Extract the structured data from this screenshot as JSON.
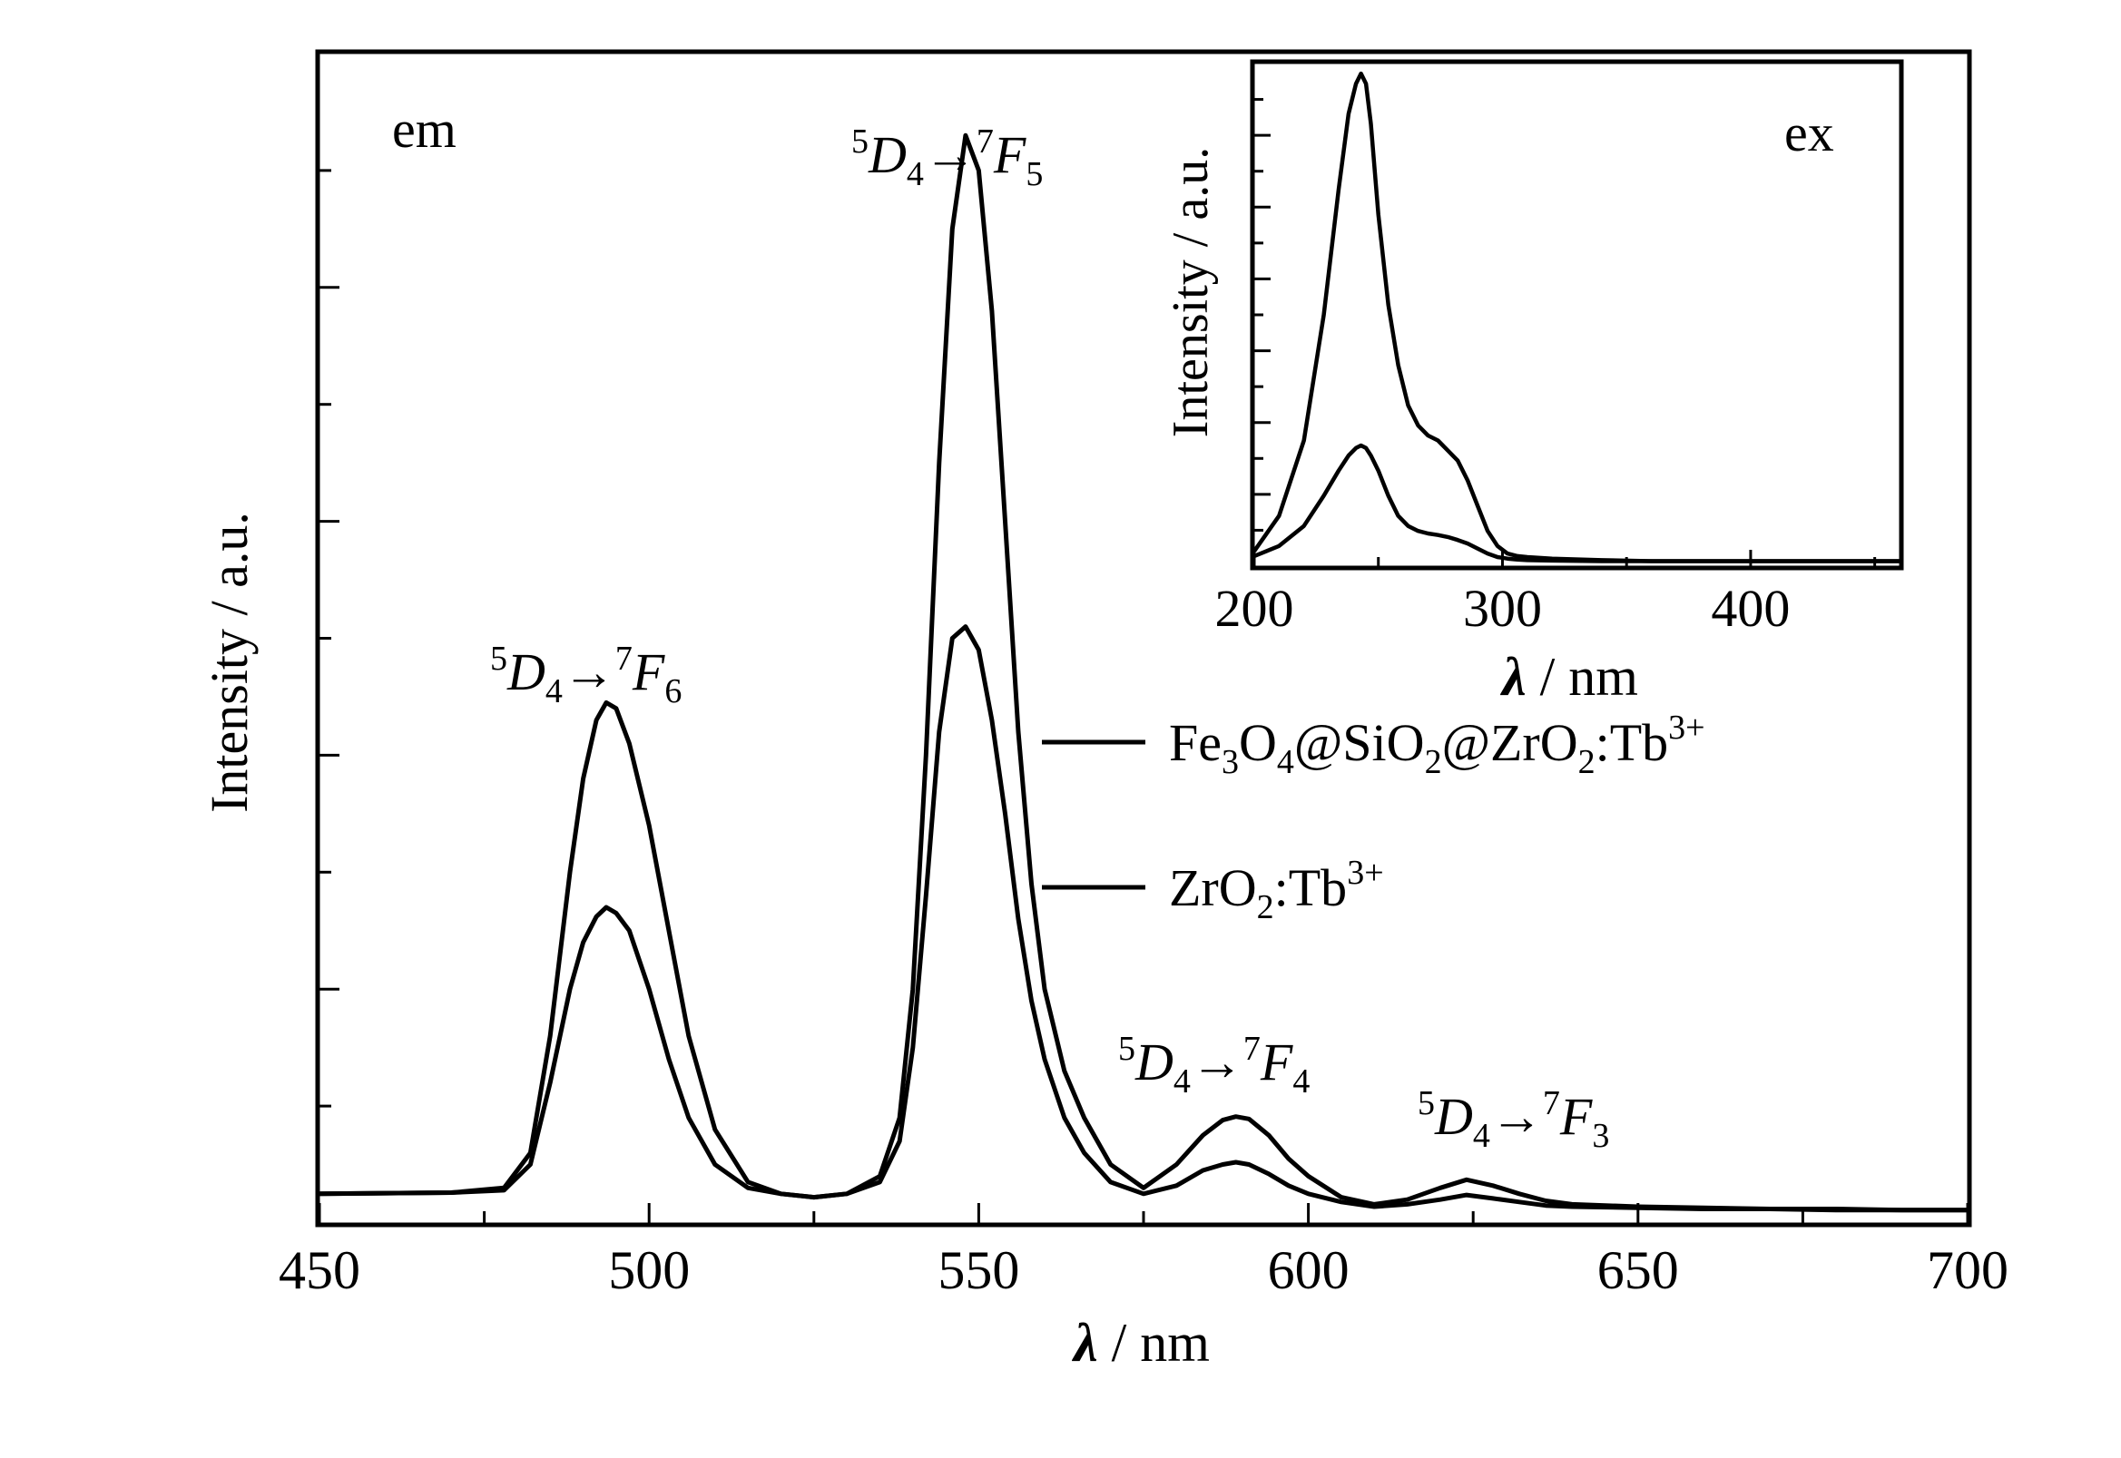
{
  "chart_data": [
    {
      "type": "line",
      "panel_label": "em",
      "xlabel_symbol": "λ",
      "xlabel_unit": " / nm",
      "ylabel": "Intensity / a.u.",
      "xlim": [
        450,
        700
      ],
      "ylim": [
        0,
        1.0
      ],
      "x_ticks": [
        450,
        500,
        550,
        600,
        650,
        700
      ],
      "x_tick_labels": [
        "450",
        "500",
        "550",
        "600",
        "650",
        "700"
      ],
      "y_tick_labels_shown": false,
      "grid": false,
      "legend_position": "right",
      "annotations": [
        {
          "id": "f6",
          "lower": "5",
          "D": "D",
          "Dsub": "4",
          "arrow": "→",
          "upper": "7",
          "F": "F",
          "Fsub": "6",
          "x": 493
        },
        {
          "id": "f5",
          "lower": "5",
          "D": "D",
          "Dsub": "4",
          "arrow": "→",
          "upper": "7",
          "F": "F",
          "Fsub": "5",
          "x": 548
        },
        {
          "id": "f4",
          "lower": "5",
          "D": "D",
          "Dsub": "4",
          "arrow": "→",
          "upper": "7",
          "F": "F",
          "Fsub": "4",
          "x": 590
        },
        {
          "id": "f3",
          "lower": "5",
          "D": "D",
          "Dsub": "4",
          "arrow": "→",
          "upper": "7",
          "F": "F",
          "Fsub": "3",
          "x": 637
        }
      ],
      "series": [
        {
          "legend_parts": [
            "Fe",
            "3",
            "O",
            "4",
            "@SiO",
            "2",
            "@ZrO",
            "2",
            ":Tb",
            "3+"
          ],
          "x": [
            450,
            470,
            478,
            482,
            485,
            488,
            490,
            492,
            493.5,
            495,
            497,
            500,
            503,
            506,
            510,
            515,
            520,
            525,
            530,
            535,
            538,
            540,
            542,
            544,
            546,
            548,
            550,
            552,
            554,
            556,
            558,
            560,
            563,
            566,
            570,
            575,
            580,
            584,
            587,
            589,
            591,
            594,
            597,
            600,
            605,
            610,
            615,
            620,
            624,
            628,
            632,
            636,
            640,
            650,
            660,
            670,
            680,
            690,
            700
          ],
          "y": [
            0.025,
            0.026,
            0.03,
            0.06,
            0.16,
            0.3,
            0.38,
            0.43,
            0.445,
            0.44,
            0.41,
            0.34,
            0.25,
            0.16,
            0.08,
            0.035,
            0.025,
            0.022,
            0.025,
            0.04,
            0.09,
            0.2,
            0.4,
            0.65,
            0.85,
            0.93,
            0.9,
            0.78,
            0.6,
            0.42,
            0.29,
            0.2,
            0.13,
            0.09,
            0.05,
            0.03,
            0.05,
            0.075,
            0.088,
            0.091,
            0.089,
            0.075,
            0.055,
            0.04,
            0.022,
            0.016,
            0.02,
            0.03,
            0.037,
            0.032,
            0.025,
            0.019,
            0.016,
            0.014,
            0.013,
            0.012,
            0.012,
            0.011,
            0.011
          ]
        },
        {
          "legend_parts": [
            "ZrO",
            "2",
            ":Tb",
            "3+"
          ],
          "x": [
            450,
            470,
            478,
            482,
            485,
            488,
            490,
            492,
            493.5,
            495,
            497,
            500,
            503,
            506,
            510,
            515,
            520,
            525,
            530,
            535,
            538,
            540,
            542,
            544,
            546,
            548,
            550,
            552,
            554,
            556,
            558,
            560,
            563,
            566,
            570,
            575,
            580,
            584,
            587,
            589,
            591,
            594,
            597,
            600,
            605,
            610,
            615,
            620,
            624,
            628,
            632,
            636,
            640,
            650,
            660,
            670,
            680,
            690,
            700
          ],
          "y": [
            0.025,
            0.026,
            0.028,
            0.05,
            0.12,
            0.2,
            0.24,
            0.262,
            0.27,
            0.265,
            0.25,
            0.2,
            0.14,
            0.09,
            0.05,
            0.03,
            0.025,
            0.022,
            0.025,
            0.035,
            0.07,
            0.15,
            0.28,
            0.42,
            0.5,
            0.51,
            0.49,
            0.43,
            0.35,
            0.26,
            0.19,
            0.14,
            0.09,
            0.06,
            0.035,
            0.025,
            0.032,
            0.045,
            0.05,
            0.052,
            0.05,
            0.042,
            0.032,
            0.025,
            0.018,
            0.014,
            0.016,
            0.02,
            0.024,
            0.021,
            0.018,
            0.015,
            0.014,
            0.013,
            0.012,
            0.012,
            0.011,
            0.011,
            0.011
          ]
        }
      ]
    },
    {
      "type": "line",
      "panel_label": "ex",
      "xlabel_symbol": "λ",
      "xlabel_unit": " / nm",
      "ylabel": "Intensity / a.u.",
      "xlim": [
        200,
        460
      ],
      "ylim": [
        0,
        1.0
      ],
      "x_ticks": [
        200,
        300,
        400
      ],
      "x_tick_labels": [
        "200",
        "300",
        "400"
      ],
      "y_tick_labels_shown": false,
      "grid": false,
      "series": [
        {
          "x": [
            200,
            210,
            220,
            228,
            234,
            238,
            241,
            243,
            245,
            247,
            250,
            254,
            258,
            262,
            266,
            270,
            274,
            278,
            282,
            286,
            290,
            294,
            298,
            302,
            306,
            310,
            320,
            340,
            360,
            380,
            400,
            420,
            440,
            460
          ],
          "y": [
            0.03,
            0.1,
            0.25,
            0.5,
            0.75,
            0.9,
            0.96,
            0.98,
            0.96,
            0.88,
            0.7,
            0.52,
            0.4,
            0.32,
            0.28,
            0.26,
            0.25,
            0.23,
            0.21,
            0.17,
            0.12,
            0.07,
            0.04,
            0.025,
            0.02,
            0.018,
            0.015,
            0.012,
            0.01,
            0.01,
            0.01,
            0.01,
            0.01,
            0.01
          ]
        },
        {
          "x": [
            200,
            210,
            220,
            228,
            234,
            238,
            241,
            243,
            245,
            247,
            250,
            254,
            258,
            262,
            266,
            270,
            274,
            278,
            282,
            286,
            290,
            294,
            298,
            302,
            306,
            310,
            320,
            340,
            360,
            380,
            400,
            420,
            440,
            460
          ],
          "y": [
            0.02,
            0.04,
            0.08,
            0.14,
            0.19,
            0.22,
            0.235,
            0.24,
            0.235,
            0.22,
            0.19,
            0.14,
            0.1,
            0.08,
            0.07,
            0.065,
            0.062,
            0.058,
            0.052,
            0.045,
            0.035,
            0.025,
            0.018,
            0.015,
            0.013,
            0.012,
            0.011,
            0.01,
            0.01,
            0.01,
            0.01,
            0.01,
            0.01,
            0.01
          ]
        }
      ]
    }
  ]
}
